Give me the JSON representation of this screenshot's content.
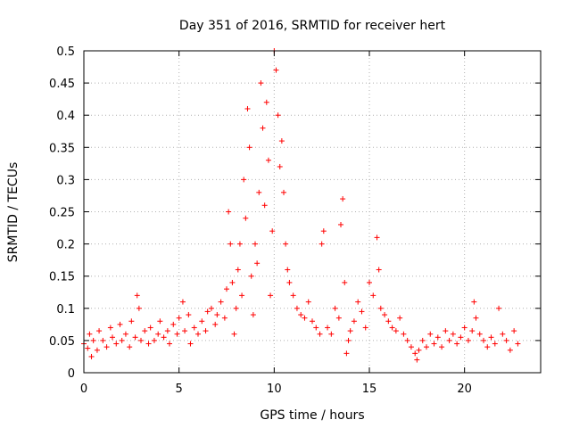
{
  "chart_data": {
    "type": "scatter",
    "title": "Day 351 of 2016, SRMTID for receiver hert",
    "xlabel": "GPS time / hours",
    "ylabel": "SRMTID / TECUs",
    "xlim": [
      0,
      24
    ],
    "ylim": [
      0,
      0.5
    ],
    "xticks": [
      0,
      5,
      10,
      15,
      20
    ],
    "yticks": [
      0,
      0.05,
      0.1,
      0.15,
      0.2,
      0.25,
      0.3,
      0.35,
      0.4,
      0.45,
      0.5
    ],
    "grid": true,
    "marker": "+",
    "series_color": "#ff0000",
    "series": [
      {
        "name": "SRMTID",
        "points": [
          [
            0.0,
            0.045
          ],
          [
            0.2,
            0.038
          ],
          [
            0.3,
            0.06
          ],
          [
            0.4,
            0.025
          ],
          [
            0.5,
            0.05
          ],
          [
            0.7,
            0.035
          ],
          [
            0.8,
            0.065
          ],
          [
            1.0,
            0.05
          ],
          [
            1.2,
            0.04
          ],
          [
            1.4,
            0.07
          ],
          [
            1.5,
            0.055
          ],
          [
            1.7,
            0.045
          ],
          [
            1.9,
            0.075
          ],
          [
            2.0,
            0.05
          ],
          [
            2.2,
            0.06
          ],
          [
            2.4,
            0.04
          ],
          [
            2.5,
            0.08
          ],
          [
            2.7,
            0.055
          ],
          [
            2.8,
            0.12
          ],
          [
            2.9,
            0.1
          ],
          [
            3.0,
            0.05
          ],
          [
            3.2,
            0.065
          ],
          [
            3.4,
            0.045
          ],
          [
            3.5,
            0.07
          ],
          [
            3.7,
            0.05
          ],
          [
            3.9,
            0.06
          ],
          [
            4.0,
            0.08
          ],
          [
            4.2,
            0.055
          ],
          [
            4.4,
            0.065
          ],
          [
            4.5,
            0.045
          ],
          [
            4.7,
            0.075
          ],
          [
            4.9,
            0.06
          ],
          [
            5.0,
            0.085
          ],
          [
            5.2,
            0.11
          ],
          [
            5.3,
            0.065
          ],
          [
            5.5,
            0.09
          ],
          [
            5.6,
            0.045
          ],
          [
            5.8,
            0.07
          ],
          [
            6.0,
            0.06
          ],
          [
            6.2,
            0.08
          ],
          [
            6.4,
            0.065
          ],
          [
            6.5,
            0.095
          ],
          [
            6.7,
            0.1
          ],
          [
            6.9,
            0.075
          ],
          [
            7.0,
            0.09
          ],
          [
            7.2,
            0.11
          ],
          [
            7.4,
            0.085
          ],
          [
            7.5,
            0.13
          ],
          [
            7.6,
            0.25
          ],
          [
            7.7,
            0.2
          ],
          [
            7.8,
            0.14
          ],
          [
            7.9,
            0.06
          ],
          [
            8.0,
            0.1
          ],
          [
            8.1,
            0.16
          ],
          [
            8.2,
            0.2
          ],
          [
            8.3,
            0.12
          ],
          [
            8.4,
            0.3
          ],
          [
            8.5,
            0.24
          ],
          [
            8.6,
            0.41
          ],
          [
            8.7,
            0.35
          ],
          [
            8.8,
            0.15
          ],
          [
            8.9,
            0.09
          ],
          [
            9.0,
            0.2
          ],
          [
            9.1,
            0.17
          ],
          [
            9.2,
            0.28
          ],
          [
            9.3,
            0.45
          ],
          [
            9.4,
            0.38
          ],
          [
            9.5,
            0.26
          ],
          [
            9.6,
            0.42
          ],
          [
            9.7,
            0.33
          ],
          [
            9.8,
            0.12
          ],
          [
            9.9,
            0.22
          ],
          [
            10.0,
            0.5
          ],
          [
            10.1,
            0.47
          ],
          [
            10.2,
            0.4
          ],
          [
            10.3,
            0.32
          ],
          [
            10.4,
            0.36
          ],
          [
            10.5,
            0.28
          ],
          [
            10.6,
            0.2
          ],
          [
            10.7,
            0.16
          ],
          [
            10.8,
            0.14
          ],
          [
            11.0,
            0.12
          ],
          [
            11.2,
            0.1
          ],
          [
            11.4,
            0.09
          ],
          [
            11.6,
            0.085
          ],
          [
            11.8,
            0.11
          ],
          [
            12.0,
            0.08
          ],
          [
            12.2,
            0.07
          ],
          [
            12.4,
            0.06
          ],
          [
            12.5,
            0.2
          ],
          [
            12.6,
            0.22
          ],
          [
            12.8,
            0.07
          ],
          [
            13.0,
            0.06
          ],
          [
            13.2,
            0.1
          ],
          [
            13.4,
            0.085
          ],
          [
            13.5,
            0.23
          ],
          [
            13.6,
            0.27
          ],
          [
            13.7,
            0.14
          ],
          [
            13.8,
            0.03
          ],
          [
            13.9,
            0.05
          ],
          [
            14.0,
            0.065
          ],
          [
            14.2,
            0.08
          ],
          [
            14.4,
            0.11
          ],
          [
            14.6,
            0.095
          ],
          [
            14.8,
            0.07
          ],
          [
            15.0,
            0.14
          ],
          [
            15.2,
            0.12
          ],
          [
            15.4,
            0.21
          ],
          [
            15.5,
            0.16
          ],
          [
            15.6,
            0.1
          ],
          [
            15.8,
            0.09
          ],
          [
            16.0,
            0.08
          ],
          [
            16.2,
            0.07
          ],
          [
            16.4,
            0.065
          ],
          [
            16.6,
            0.085
          ],
          [
            16.8,
            0.06
          ],
          [
            17.0,
            0.05
          ],
          [
            17.2,
            0.04
          ],
          [
            17.4,
            0.03
          ],
          [
            17.5,
            0.02
          ],
          [
            17.6,
            0.035
          ],
          [
            17.8,
            0.05
          ],
          [
            18.0,
            0.04
          ],
          [
            18.2,
            0.06
          ],
          [
            18.4,
            0.045
          ],
          [
            18.6,
            0.055
          ],
          [
            18.8,
            0.04
          ],
          [
            19.0,
            0.065
          ],
          [
            19.2,
            0.05
          ],
          [
            19.4,
            0.06
          ],
          [
            19.6,
            0.045
          ],
          [
            19.8,
            0.055
          ],
          [
            20.0,
            0.07
          ],
          [
            20.2,
            0.05
          ],
          [
            20.4,
            0.065
          ],
          [
            20.5,
            0.11
          ],
          [
            20.6,
            0.085
          ],
          [
            20.8,
            0.06
          ],
          [
            21.0,
            0.05
          ],
          [
            21.2,
            0.04
          ],
          [
            21.4,
            0.055
          ],
          [
            21.6,
            0.045
          ],
          [
            21.8,
            0.1
          ],
          [
            22.0,
            0.06
          ],
          [
            22.2,
            0.05
          ],
          [
            22.4,
            0.035
          ],
          [
            22.6,
            0.065
          ],
          [
            22.8,
            0.045
          ]
        ]
      }
    ]
  }
}
